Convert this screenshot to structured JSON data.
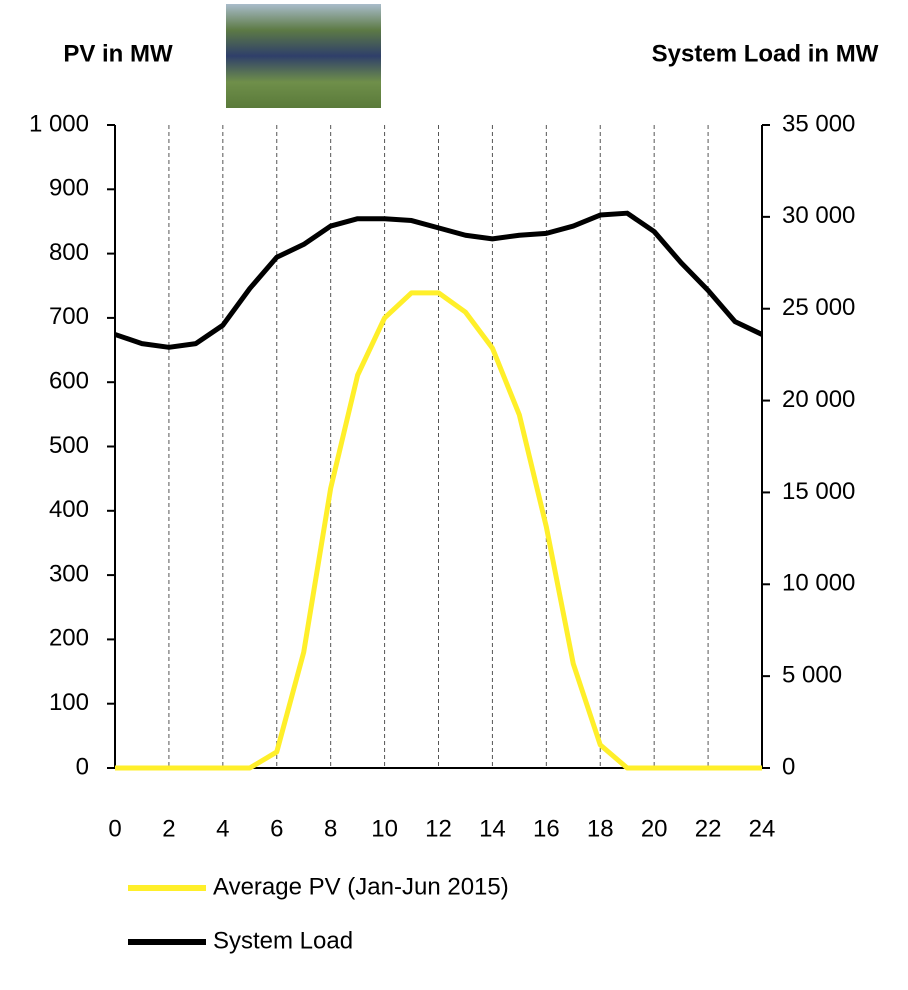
{
  "chart_data": {
    "type": "line",
    "y_label": "PV in MW",
    "y2_label": "System Load in MW",
    "x": [
      0,
      1,
      2,
      3,
      4,
      5,
      6,
      7,
      8,
      9,
      10,
      11,
      12,
      13,
      14,
      15,
      16,
      17,
      18,
      19,
      20,
      21,
      22,
      23,
      24
    ],
    "series": [
      {
        "name": "Average PV (Jan-Jun 2015)",
        "color": "#ffef2a",
        "values": [
          0,
          0,
          0,
          0,
          0,
          0,
          25,
          180,
          435,
          611,
          700,
          739,
          739,
          709,
          653,
          549,
          375,
          162,
          36,
          0,
          0,
          0,
          0,
          0,
          0
        ]
      },
      {
        "name": "System Load",
        "color": "#000000",
        "axis": "y2",
        "values": [
          23600,
          23100,
          22900,
          23100,
          24100,
          26100,
          27800,
          28500,
          29500,
          29900,
          29900,
          29800,
          29400,
          29000,
          28800,
          29000,
          29100,
          29500,
          30100,
          30200,
          29200,
          27500,
          26000,
          24300,
          23600
        ]
      }
    ],
    "xlim": [
      0,
      24
    ],
    "xticks": [
      0,
      2,
      4,
      6,
      8,
      10,
      12,
      14,
      16,
      18,
      20,
      22,
      24
    ],
    "ylim": [
      0,
      1000
    ],
    "yticks": [
      0,
      100,
      200,
      300,
      400,
      500,
      600,
      700,
      800,
      900,
      {
        "value": 1000,
        "label": "1 000"
      }
    ],
    "y2lim": [
      0,
      35000
    ],
    "y2ticks": [
      0,
      {
        "value": 5000,
        "label": "5 000"
      },
      {
        "value": 10000,
        "label": "10 000"
      },
      {
        "value": 15000,
        "label": "15 000"
      },
      {
        "value": 20000,
        "label": "20 000"
      },
      {
        "value": 25000,
        "label": "25 000"
      },
      {
        "value": 30000,
        "label": "30 000"
      },
      {
        "value": 35000,
        "label": "35 000"
      }
    ],
    "grid": true
  }
}
